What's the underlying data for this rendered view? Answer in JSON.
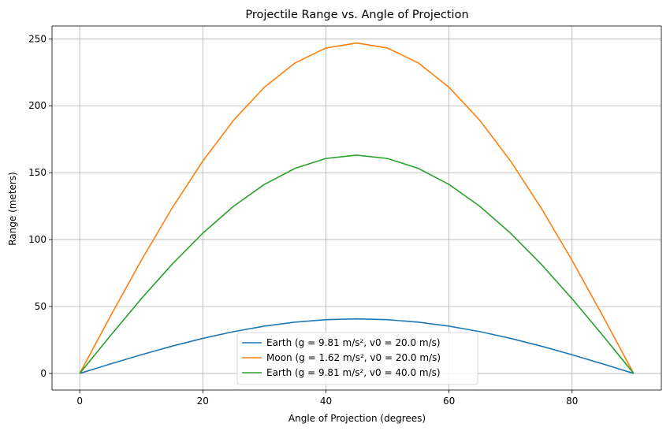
{
  "chart_data": {
    "type": "line",
    "title": "Projectile Range vs. Angle of Projection",
    "xlabel": "Angle of Projection (degrees)",
    "ylabel": "Range (meters)",
    "xlim": [
      -4.5,
      94.5
    ],
    "ylim": [
      -12.4,
      259.6
    ],
    "xticks": [
      0,
      20,
      40,
      60,
      80
    ],
    "yticks": [
      0,
      50,
      100,
      150,
      200,
      250
    ],
    "grid": true,
    "legend_position": "lower center",
    "x": [
      0,
      5,
      10,
      15,
      20,
      25,
      30,
      35,
      40,
      45,
      50,
      55,
      60,
      65,
      70,
      75,
      80,
      85,
      90
    ],
    "series": [
      {
        "name": "Earth (g = 9.81 m/s², v0 = 20.0 m/s)",
        "color": "#1f77b4",
        "values": [
          0,
          7.08,
          13.95,
          20.39,
          26.21,
          31.24,
          35.31,
          38.32,
          40.16,
          40.77,
          40.16,
          38.32,
          35.31,
          31.24,
          26.21,
          20.39,
          13.95,
          7.08,
          0
        ]
      },
      {
        "name": "Moon (g = 1.62 m/s², v0 = 20.0 m/s)",
        "color": "#ff7f0e",
        "values": [
          0,
          42.88,
          84.45,
          123.46,
          158.72,
          189.14,
          213.83,
          232.04,
          243.17,
          246.91,
          243.17,
          232.04,
          213.83,
          189.14,
          158.72,
          123.46,
          84.45,
          42.88,
          0
        ]
      },
      {
        "name": "Earth (g = 9.81 m/s², v0 = 40.0 m/s)",
        "color": "#2ca02c",
        "values": [
          0,
          28.32,
          55.78,
          81.55,
          104.83,
          124.93,
          141.23,
          153.26,
          160.61,
          163.1,
          160.61,
          153.26,
          141.23,
          124.93,
          104.83,
          81.55,
          55.78,
          28.32,
          0
        ]
      }
    ]
  }
}
